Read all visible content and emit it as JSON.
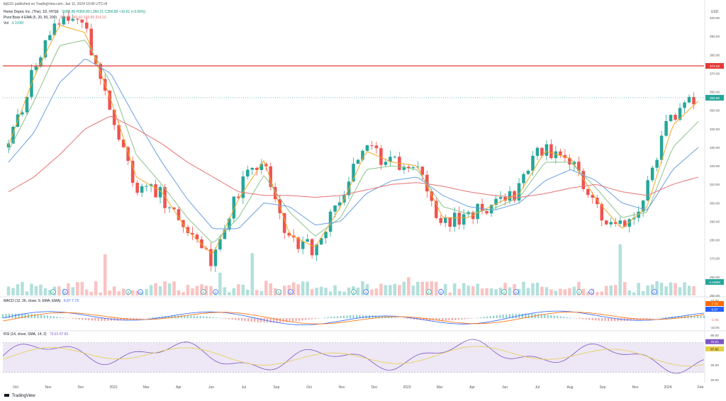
{
  "header": {
    "published": "tkjl101 published on TradingView.com, Jan 11, 2024 10:06 UTC+8",
    "symbol": "Home Depot, Inc. (The), 1D, NYSE",
    "ohlc": "O356.80 H356.80 L350.21 C356.80 +10.61 (+3.06%)",
    "indicator_ema": "Pivot Boss 4 EMA (5, 20, 50, 200)",
    "ema_values": "354.51  343.60  329.89  314.16",
    "vol_label": "Vol",
    "vol_value": "4.109M"
  },
  "colors": {
    "up": "#26a69a",
    "down": "#ef5350",
    "ema5": "#f5a623",
    "ema20": "#8cc28c",
    "ema50": "#6a9fe0",
    "ema200": "#e57373",
    "resistance": "#e53935",
    "macd": "#2962ff",
    "signal": "#ff6d00",
    "rsi": "#7e57c2",
    "rsi_ma": "#e6d04a",
    "rsi_band": "#ede7f6"
  },
  "price_axis": {
    "currency": "USD",
    "ticks": [
      "400.00",
      "390.00",
      "380.00",
      "370.00",
      "360.00",
      "350.00",
      "340.00",
      "330.00",
      "320.00",
      "310.00",
      "300.00",
      "290.00",
      "280.00",
      "270.00",
      "260.00",
      "250.00"
    ],
    "resistance_label": "374.00",
    "last_label": "356.80",
    "vol_badge": "4.109M"
  },
  "macd_panel": {
    "title": "MACD (12, 26, close, 9, EMA, EMA)",
    "values": "6.67  7.73",
    "badges": [
      "7.73",
      "6.67"
    ],
    "hist_badge": "-1.06",
    "ticks": [
      "10.00",
      "-10.00"
    ]
  },
  "rsi_panel": {
    "title": "RSI (14, close, SMA, 14, 2)",
    "values": "70.91  67.81",
    "badges": [
      "70.91",
      "67.81"
    ],
    "ticks": [
      "80.00",
      "60.00",
      "40.00",
      "20.00"
    ]
  },
  "x_axis": {
    "ticks": [
      "Oct",
      "Nov",
      "Dec",
      "2022",
      "Mar",
      "Apr",
      "Jun",
      "Jul",
      "Sep",
      "Oct",
      "Nov",
      "Dec",
      "2023",
      "Mar",
      "Apr",
      "Jun",
      "Jul",
      "Aug",
      "Sep",
      "Nov",
      "2024",
      "Feb"
    ]
  },
  "event_marks": [
    "E",
    "D",
    "E",
    "D",
    "E",
    "D",
    "E",
    "D",
    "E",
    "D",
    "E",
    "D",
    "E",
    "D",
    "E",
    "D",
    "D"
  ],
  "footer": {
    "brand": "TradingView"
  },
  "chart_data": {
    "type": "line",
    "ylim": [
      250,
      405
    ],
    "x": [
      "2021-10",
      "2021-11",
      "2021-12",
      "2022-01",
      "2022-02",
      "2022-03",
      "2022-04",
      "2022-05",
      "2022-06",
      "2022-07",
      "2022-08",
      "2022-09",
      "2022-10",
      "2022-11",
      "2022-12",
      "2023-01",
      "2023-02",
      "2023-03",
      "2023-04",
      "2023-05",
      "2023-06",
      "2023-07",
      "2023-08",
      "2023-09",
      "2023-10",
      "2023-11",
      "2023-12",
      "2024-01"
    ],
    "series": [
      {
        "name": "close",
        "values": [
          330,
          372,
          400,
          395,
          352,
          310,
          305,
          282,
          270,
          305,
          325,
          280,
          275,
          300,
          330,
          322,
          320,
          290,
          292,
          300,
          305,
          330,
          325,
          300,
          285,
          300,
          345,
          357
        ]
      },
      {
        "name": "ema5",
        "values": [
          331,
          368,
          396,
          392,
          356,
          314,
          306,
          285,
          272,
          302,
          323,
          283,
          276,
          298,
          328,
          322,
          320,
          292,
          292,
          299,
          305,
          328,
          324,
          302,
          286,
          298,
          342,
          355
        ]
      },
      {
        "name": "ema20",
        "values": [
          328,
          355,
          385,
          388,
          365,
          326,
          310,
          292,
          278,
          292,
          315,
          295,
          282,
          292,
          318,
          320,
          318,
          298,
          294,
          297,
          303,
          322,
          322,
          308,
          292,
          295,
          330,
          344
        ]
      },
      {
        "name": "ema50",
        "values": [
          322,
          338,
          365,
          378,
          370,
          345,
          322,
          302,
          286,
          286,
          300,
          298,
          288,
          290,
          305,
          312,
          314,
          304,
          298,
          296,
          300,
          312,
          318,
          312,
          300,
          296,
          318,
          330
        ]
      },
      {
        "name": "ema200",
        "values": [
          306,
          314,
          326,
          340,
          347,
          340,
          332,
          322,
          314,
          306,
          304,
          304,
          303,
          304,
          307,
          310,
          311,
          309,
          306,
          304,
          303,
          305,
          308,
          310,
          306,
          304,
          310,
          314
        ]
      }
    ],
    "hlines": [
      {
        "value": 374
      }
    ],
    "last": 356.8
  }
}
